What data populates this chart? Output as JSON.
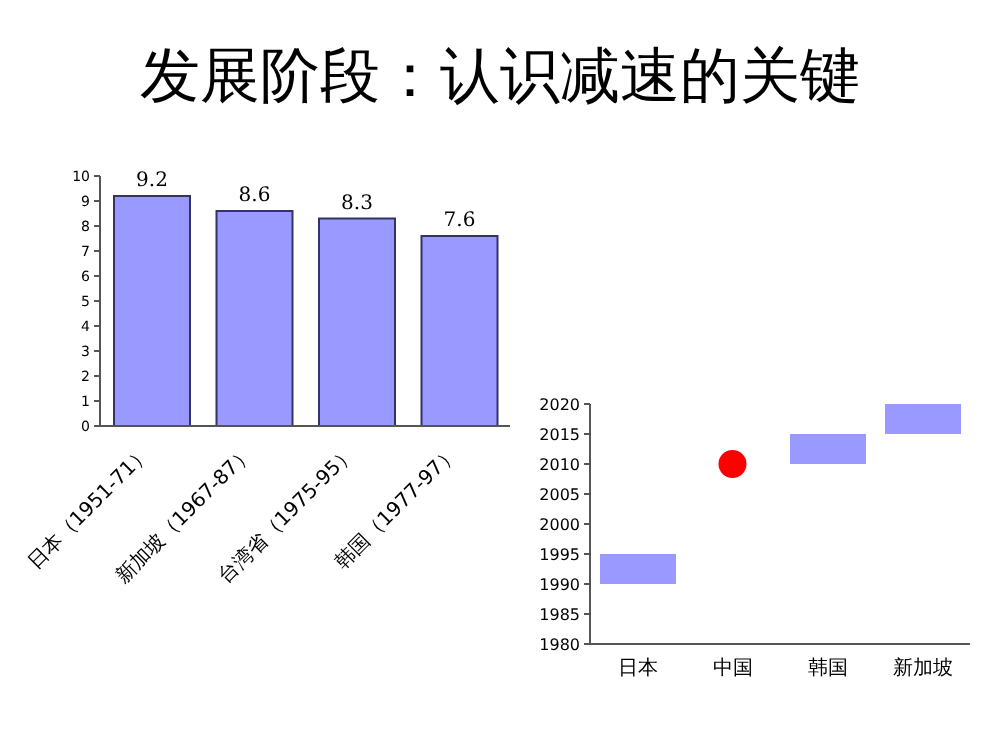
{
  "chart_data": [
    {
      "type": "bar",
      "title": "发展阶段：认识减速的关键",
      "categories": [
        "日本（1951-71）",
        "新加坡（1967-87）",
        "台湾省（1975-95）",
        "韩国（1977-97）"
      ],
      "values": [
        9.2,
        8.6,
        8.3,
        7.6
      ],
      "color": "#9999ff",
      "ylim": [
        0,
        10
      ],
      "yticks": [
        0,
        1,
        2,
        3,
        4,
        5,
        6,
        7,
        8,
        9,
        10
      ],
      "data_labels": true,
      "grid": false,
      "legend": false
    },
    {
      "type": "bar",
      "categories": [
        "日本",
        "中国",
        "韩国",
        "新加坡"
      ],
      "series": [
        {
          "type": "bar",
          "color": "#9999ff",
          "values": [
            5,
            null,
            5,
            5
          ],
          "base": [
            1990,
            null,
            2010,
            2015
          ]
        },
        {
          "type": "scatter",
          "color": "#ff0000",
          "x": [
            "中国"
          ],
          "values": [
            2010
          ],
          "marker": "circle"
        }
      ],
      "ylim": [
        1980,
        2020
      ],
      "yticks": [
        1980,
        1985,
        1990,
        1995,
        2000,
        2005,
        2010,
        2015,
        2020
      ],
      "grid": false,
      "legend": false
    }
  ]
}
